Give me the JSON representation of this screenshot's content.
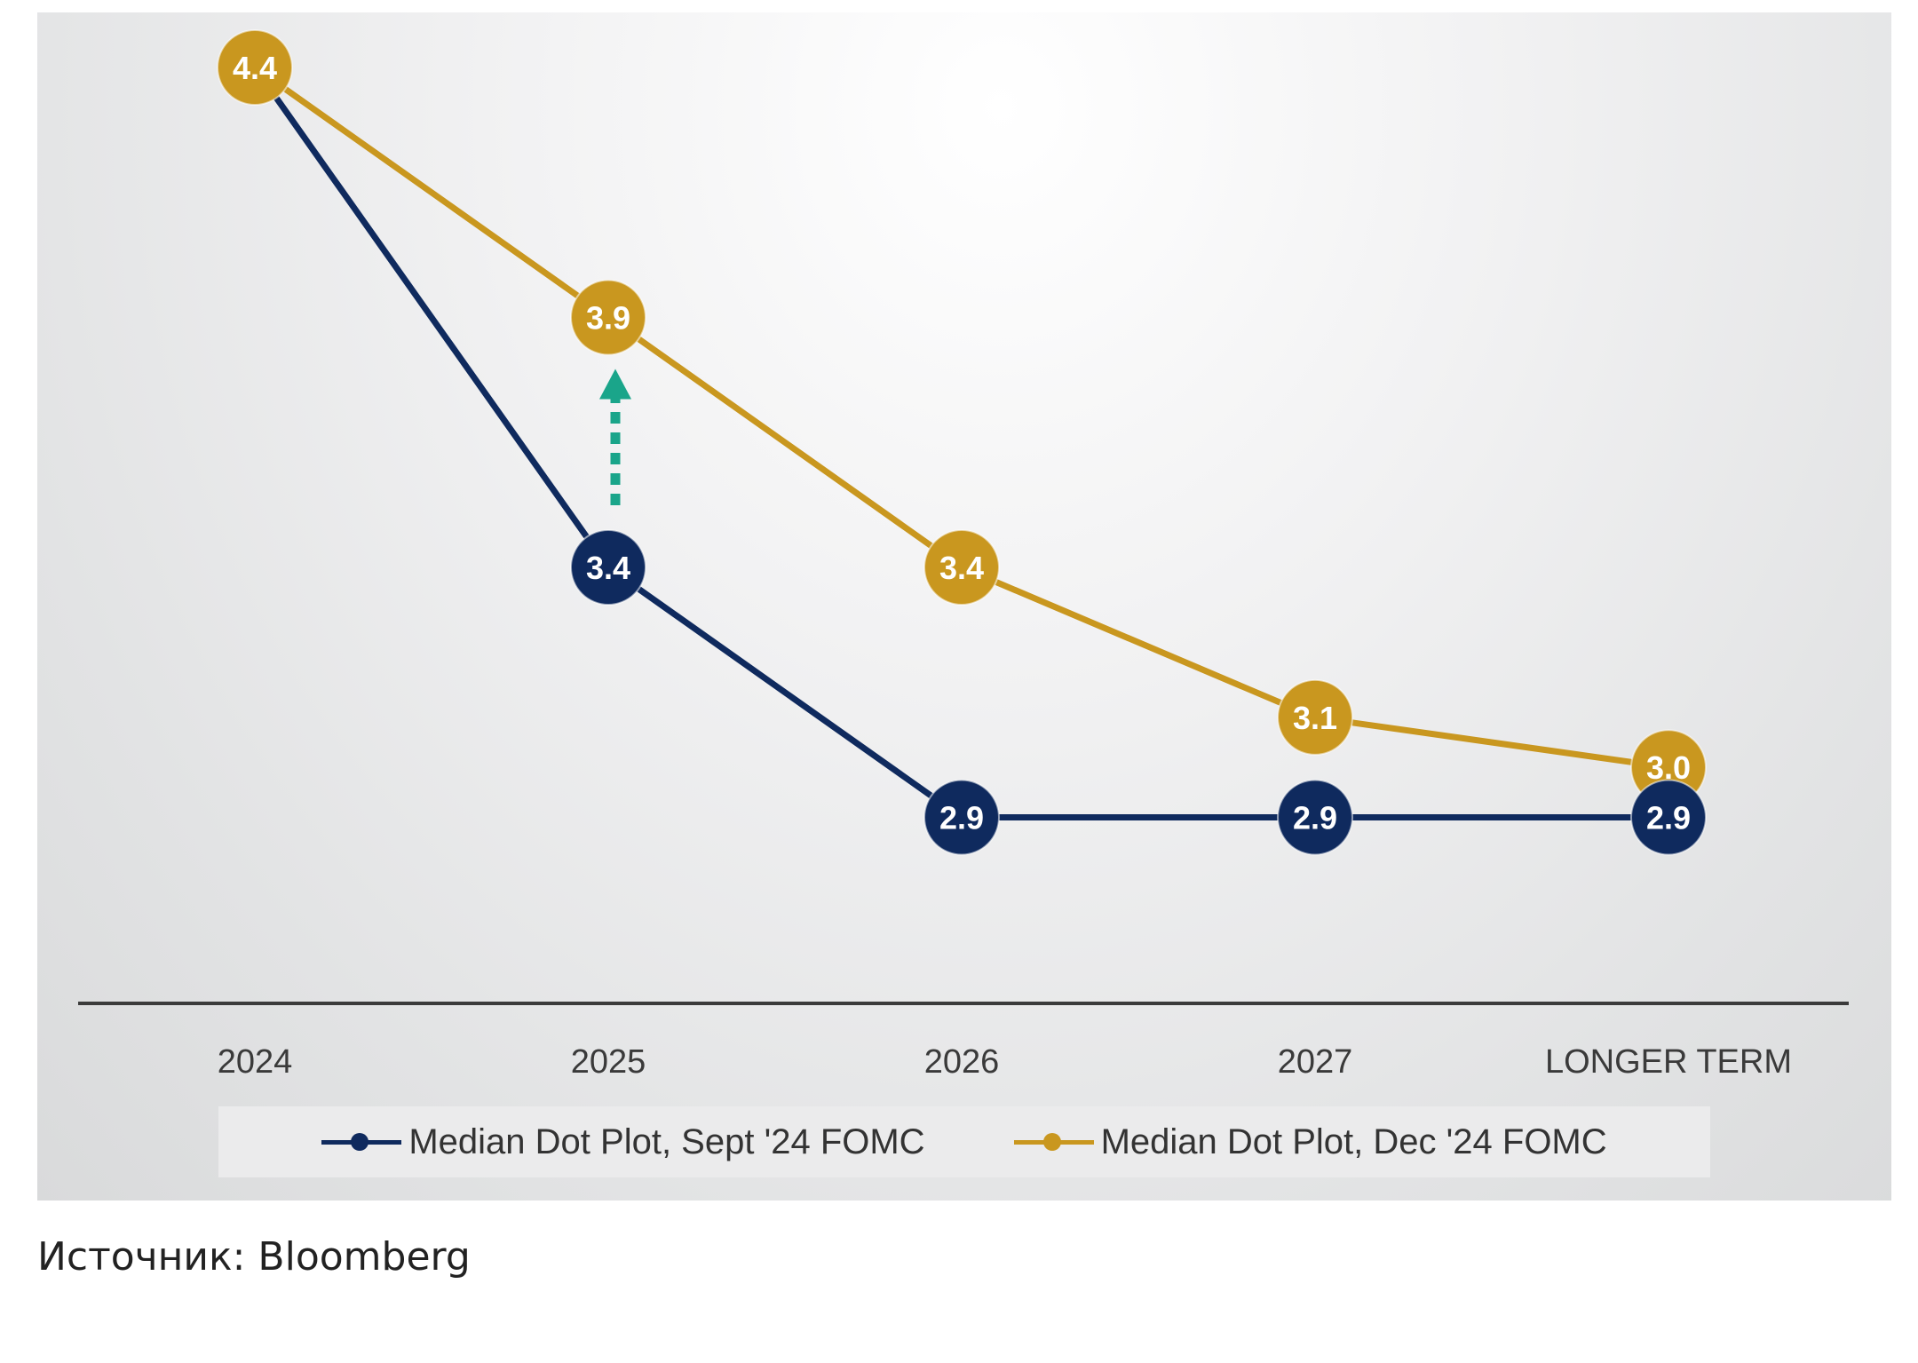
{
  "chart_data": {
    "type": "line",
    "categories": [
      "2024",
      "2025",
      "2026",
      "2027",
      "LONGER TERM"
    ],
    "series": [
      {
        "name": "Median Dot Plot, Sept '24 FOMC",
        "color": "#0f2a5e",
        "values": [
          4.4,
          3.4,
          2.9,
          2.9,
          2.9
        ],
        "labels": [
          "",
          "3.4",
          "2.9",
          "2.9",
          "2.9"
        ]
      },
      {
        "name": "Median Dot Plot, Dec '24 FOMC",
        "color": "#c9971f",
        "values": [
          4.4,
          3.9,
          3.4,
          3.1,
          3.0
        ],
        "labels": [
          "4.4",
          "3.9",
          "3.4",
          "3.1",
          "3.0"
        ]
      }
    ],
    "annotation": {
      "type": "dotted-arrow",
      "category": "2025",
      "from": 3.4,
      "to": 3.9,
      "color": "#1aa58a"
    },
    "legend_position": "bottom",
    "grid": false
  },
  "source": "Источник: Bloomberg"
}
